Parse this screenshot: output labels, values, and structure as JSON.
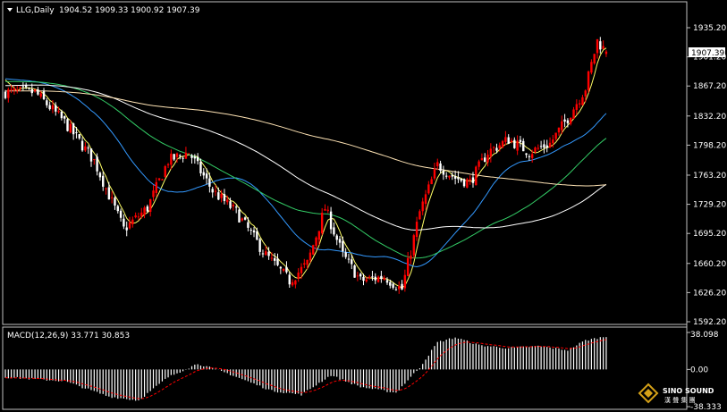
{
  "header": {
    "symbol_label": "LLG,Daily",
    "ohlc_label": "1904.52 1909.33 1900.92 1907.39"
  },
  "price_axis": {
    "ticks": [
      "1935.20",
      "1901.20",
      "1867.20",
      "1832.20",
      "1798.20",
      "1763.20",
      "1729.20",
      "1695.20",
      "1660.20",
      "1626.20",
      "1592.20"
    ],
    "current_price_label": "1907.39"
  },
  "macd_panel": {
    "label": "MACD(12,26,9) 33.771 30.853",
    "ticks": [
      "38.098",
      "0.00",
      "-38.333"
    ]
  },
  "watermark": {
    "brand": "SINO SOUND",
    "sub": "漢 聲 集 團"
  },
  "colors": {
    "background": "#000000",
    "bull": "#ff0000",
    "bear": "#ffffff",
    "ma_fast": "#ffff66",
    "ma_blue": "#3399ff",
    "ma_green": "#33cc66",
    "ma_white": "#ffffff",
    "ma_tan": "#ffe4b5",
    "macd_hist": "#ffffff",
    "macd_signal": "#ff0000",
    "axis": "#c0c0c0"
  },
  "chart_data": {
    "type": "candlestick",
    "ylim": [
      1592.2,
      1935.2
    ],
    "macd_ylim": [
      -38.333,
      38.098
    ],
    "key_points": [
      {
        "bar": 0,
        "close": 1860
      },
      {
        "bar": 10,
        "close": 1860
      },
      {
        "bar": 20,
        "close": 1825
      },
      {
        "bar": 30,
        "close": 1780
      },
      {
        "bar": 40,
        "close": 1700
      },
      {
        "bar": 48,
        "close": 1725
      },
      {
        "bar": 55,
        "close": 1780
      },
      {
        "bar": 62,
        "close": 1790
      },
      {
        "bar": 70,
        "close": 1745
      },
      {
        "bar": 78,
        "close": 1720
      },
      {
        "bar": 88,
        "close": 1670
      },
      {
        "bar": 96,
        "close": 1640
      },
      {
        "bar": 102,
        "close": 1660
      },
      {
        "bar": 108,
        "close": 1725
      },
      {
        "bar": 114,
        "close": 1670
      },
      {
        "bar": 120,
        "close": 1640
      },
      {
        "bar": 128,
        "close": 1645
      },
      {
        "bar": 134,
        "close": 1630
      },
      {
        "bar": 140,
        "close": 1720
      },
      {
        "bar": 146,
        "close": 1775
      },
      {
        "bar": 152,
        "close": 1760
      },
      {
        "bar": 157,
        "close": 1755
      },
      {
        "bar": 163,
        "close": 1790
      },
      {
        "bar": 170,
        "close": 1805
      },
      {
        "bar": 177,
        "close": 1790
      },
      {
        "bar": 184,
        "close": 1800
      },
      {
        "bar": 190,
        "close": 1830
      },
      {
        "bar": 196,
        "close": 1865
      },
      {
        "bar": 200,
        "close": 1920
      },
      {
        "bar": 203,
        "close": 1907
      }
    ],
    "macd_hist_points": [
      {
        "bar": 0,
        "value": -8
      },
      {
        "bar": 20,
        "value": -12
      },
      {
        "bar": 35,
        "value": -28
      },
      {
        "bar": 45,
        "value": -32
      },
      {
        "bar": 55,
        "value": -8
      },
      {
        "bar": 65,
        "value": 6
      },
      {
        "bar": 75,
        "value": -4
      },
      {
        "bar": 90,
        "value": -22
      },
      {
        "bar": 100,
        "value": -26
      },
      {
        "bar": 110,
        "value": -6
      },
      {
        "bar": 120,
        "value": -18
      },
      {
        "bar": 132,
        "value": -24
      },
      {
        "bar": 140,
        "value": 2
      },
      {
        "bar": 146,
        "value": 28
      },
      {
        "bar": 152,
        "value": 33
      },
      {
        "bar": 160,
        "value": 25
      },
      {
        "bar": 170,
        "value": 22
      },
      {
        "bar": 180,
        "value": 24
      },
      {
        "bar": 190,
        "value": 20
      },
      {
        "bar": 196,
        "value": 30
      },
      {
        "bar": 203,
        "value": 34
      }
    ]
  }
}
